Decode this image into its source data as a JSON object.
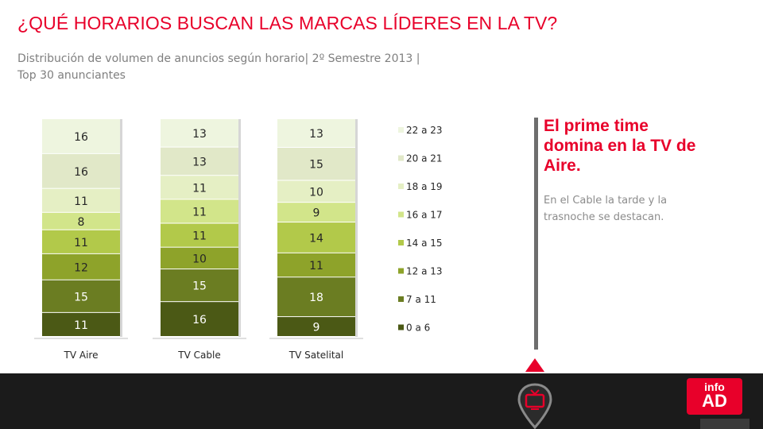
{
  "header": {
    "title": "¿QUÉ HORARIOS BUSCAN LAS MARCAS LÍDERES EN LA TV?",
    "subtitle_line1": "Distribución de volumen de anuncios según horario| 2º Semestre 2013 |",
    "subtitle_line2": "Top 30 anunciantes"
  },
  "callout": {
    "title": "El prime time domina en la TV de Aire.",
    "text": "En el Cable la tarde y la trasnoche se destacan."
  },
  "logo": {
    "line1": "info",
    "line2": "AD"
  },
  "icons": {
    "tv": "tv-icon",
    "pointer": "triangle-up-icon"
  },
  "colors": {
    "accent": "#e8002a",
    "segments": [
      "#4b5915",
      "#6b7d22",
      "#8ea32a",
      "#b2c94a",
      "#d2e58a",
      "#e5efc4",
      "#e1e8c8",
      "#eef5df"
    ]
  },
  "chart_data": {
    "type": "bar",
    "stacked": true,
    "categories": [
      "TV Aire",
      "TV Cable",
      "TV Satelital"
    ],
    "series": [
      {
        "name": "0 a 6",
        "values": [
          11,
          16,
          9
        ]
      },
      {
        "name": "7 a 11",
        "values": [
          15,
          15,
          18
        ]
      },
      {
        "name": "12 a 13",
        "values": [
          12,
          10,
          11
        ]
      },
      {
        "name": "14 a 15",
        "values": [
          11,
          11,
          14
        ]
      },
      {
        "name": "16 a 17",
        "values": [
          8,
          11,
          9
        ]
      },
      {
        "name": "18 a 19",
        "values": [
          11,
          11,
          10
        ]
      },
      {
        "name": "20 a 21",
        "values": [
          16,
          13,
          15
        ]
      },
      {
        "name": "22 a 23",
        "values": [
          16,
          13,
          13
        ]
      }
    ],
    "legend_position": "right",
    "grid": false
  }
}
